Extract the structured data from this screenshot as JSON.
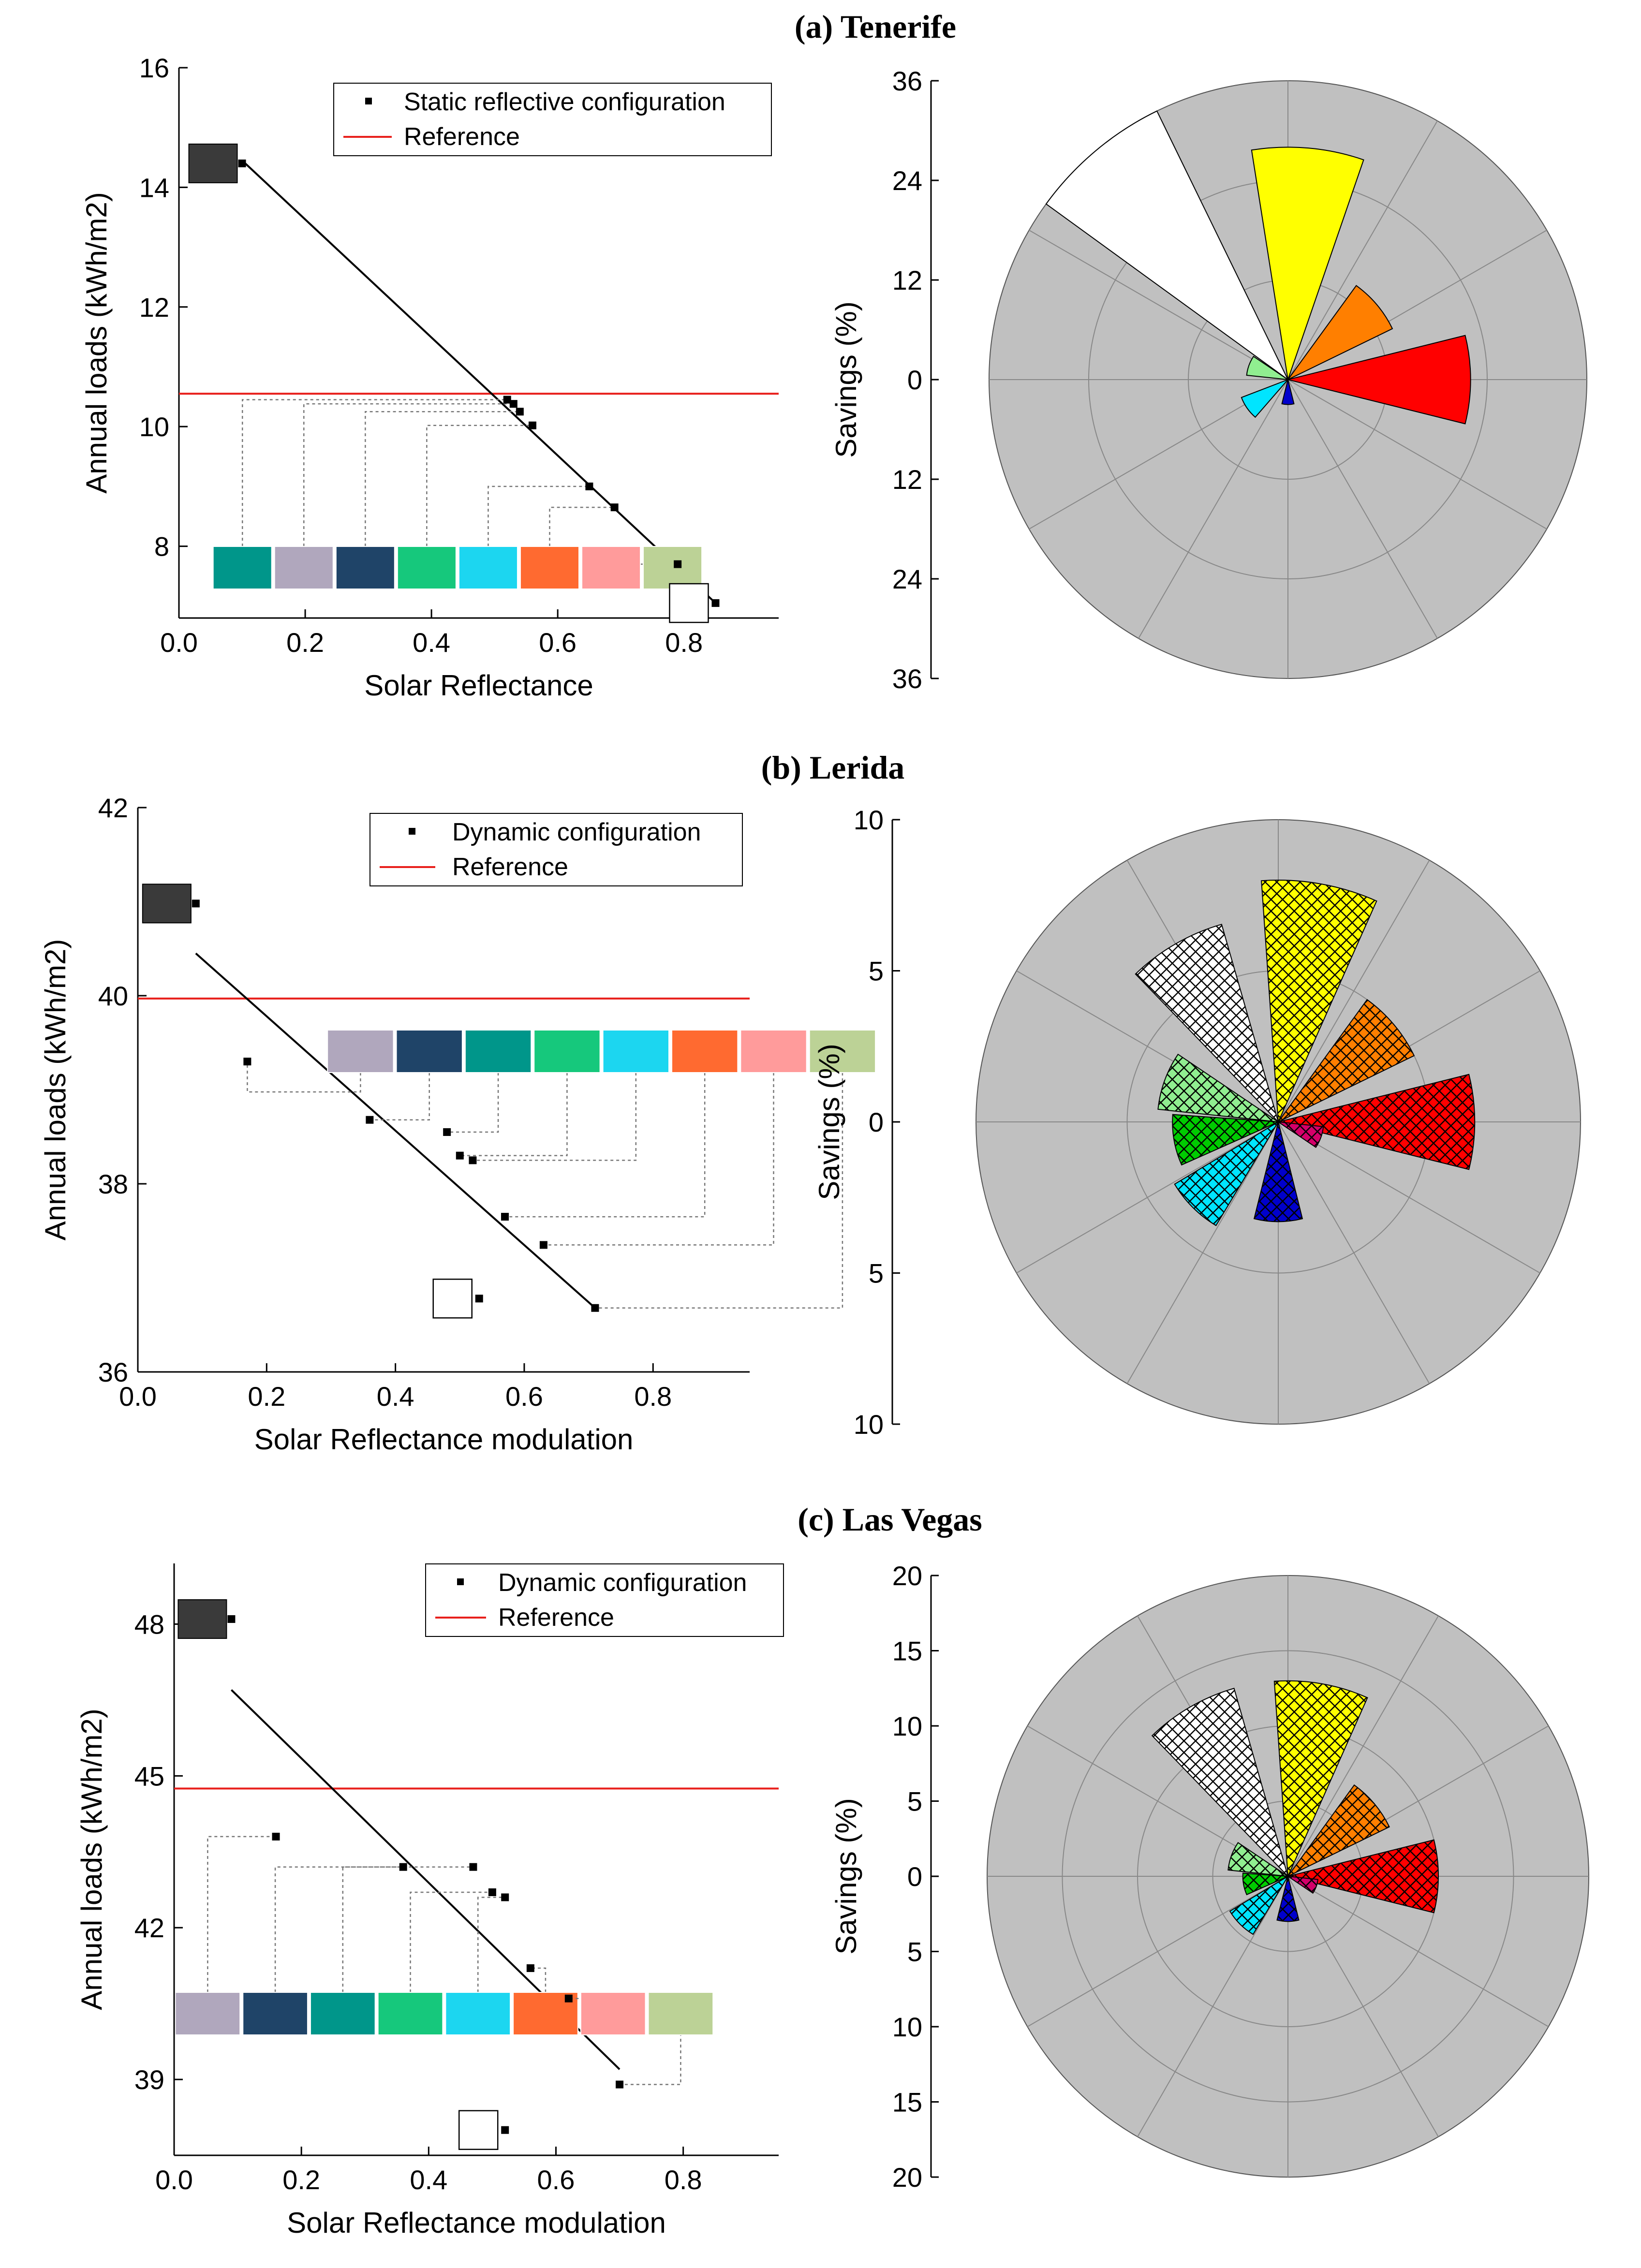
{
  "figure": {
    "panels": [
      {
        "title": "(a) Tenerife",
        "legend": [
          "Static reflective configuration",
          "Reference"
        ],
        "polar_ylabel": "Savings (%)"
      },
      {
        "title": "(b) Lerida",
        "legend": [
          "Dynamic configuration",
          "Reference"
        ],
        "polar_ylabel": "Savings (%)"
      },
      {
        "title": "(c) Las Vegas",
        "legend": [
          "Dynamic configuration",
          "Reference"
        ],
        "polar_ylabel": "Savings (%)"
      }
    ]
  },
  "colors": {
    "reference_line": "#e8201c",
    "polar_bg": "#c0c0c0",
    "swatch_teal": "#00968a",
    "swatch_lavender": "#b0a7bd",
    "swatch_navy": "#1f4468",
    "swatch_green": "#16c87c",
    "swatch_cyan": "#1cd6f0",
    "swatch_orange": "#ff6a30",
    "swatch_pink": "#ff9b9b",
    "swatch_sage": "#bcd296",
    "swatch_black": "#3a3a3a"
  },
  "chart_data": [
    {
      "type": "scatter",
      "title": "(a) Tenerife",
      "xlabel": "Solar Reflectance",
      "ylabel": "Annual loads (kWh/m2)",
      "xlim": [
        0,
        0.95
      ],
      "ylim": [
        6.8,
        16
      ],
      "xticks": [
        "0.0",
        "0.2",
        "0.4",
        "0.6",
        "0.8"
      ],
      "yticks": [
        "8",
        "10",
        "12",
        "14",
        "16"
      ],
      "x": [
        0.1,
        0.52,
        0.53,
        0.54,
        0.56,
        0.65,
        0.69,
        0.79,
        0.85
      ],
      "y": [
        14.4,
        10.45,
        10.38,
        10.25,
        10.02,
        9.0,
        8.65,
        7.7,
        7.05
      ],
      "fit_line": {
        "x": [
          0.1,
          0.85
        ],
        "y": [
          14.45,
          7.05
        ]
      },
      "reference": 10.55,
      "legend": [
        "Static reflective configuration",
        "Reference"
      ]
    },
    {
      "type": "polar-bar",
      "title": "(a) Tenerife",
      "ylabel": "Savings (%)",
      "rmax": 36,
      "yticks": [
        "36",
        "24",
        "12",
        "0",
        "12",
        "24",
        "36"
      ],
      "categories": [
        "red",
        "orange",
        "yellow",
        "white",
        "light-green",
        "cyan",
        "blue"
      ],
      "values": [
        22,
        14,
        28,
        36,
        5,
        6,
        3
      ],
      "hatched": false
    },
    {
      "type": "scatter",
      "title": "(b) Lerida",
      "xlabel": "Solar Reflectance modulation",
      "ylabel": "Annual loads (kWh/m2)",
      "xlim": [
        0,
        0.95
      ],
      "ylim": [
        36,
        42
      ],
      "xticks": [
        "0.0",
        "0.2",
        "0.4",
        "0.6",
        "0.8"
      ],
      "yticks": [
        "36",
        "38",
        "40",
        "42"
      ],
      "x": [
        0.09,
        0.17,
        0.36,
        0.48,
        0.5,
        0.52,
        0.57,
        0.63,
        0.71,
        0.53
      ],
      "y": [
        40.98,
        39.3,
        38.68,
        38.55,
        38.3,
        38.25,
        37.65,
        37.35,
        36.68,
        36.78
      ],
      "fit_line": {
        "x": [
          0.09,
          0.71
        ],
        "y": [
          40.45,
          36.68
        ]
      },
      "reference": 39.97,
      "legend": [
        "Dynamic configuration",
        "Reference"
      ]
    },
    {
      "type": "polar-bar",
      "title": "(b) Lerida",
      "ylabel": "Savings (%)",
      "rmax": 10,
      "yticks": [
        "10",
        "5",
        "0",
        "5",
        "10"
      ],
      "categories": [
        "red",
        "orange",
        "yellow",
        "white",
        "light-green",
        "green",
        "cyan",
        "blue",
        "magenta"
      ],
      "values": [
        6.5,
        5.0,
        8.0,
        6.8,
        4.0,
        3.5,
        4.0,
        3.3,
        1.5
      ],
      "hatched": true
    },
    {
      "type": "scatter",
      "title": "(c) Las Vegas",
      "xlabel": "Solar Reflectance modulation",
      "ylabel": "Annual loads (kWh/m2)",
      "xlim": [
        0,
        0.95
      ],
      "ylim": [
        37.5,
        49.2
      ],
      "xticks": [
        "0.0",
        "0.2",
        "0.4",
        "0.6",
        "0.8"
      ],
      "yticks": [
        "39",
        "42",
        "45",
        "48"
      ],
      "x": [
        0.09,
        0.16,
        0.36,
        0.47,
        0.5,
        0.52,
        0.56,
        0.62,
        0.7,
        0.52
      ],
      "y": [
        48.1,
        43.8,
        43.2,
        43.2,
        42.7,
        42.6,
        41.2,
        40.6,
        38.9,
        38.0
      ],
      "fit_line": {
        "x": [
          0.09,
          0.7
        ],
        "y": [
          46.7,
          39.2
        ]
      },
      "reference": 44.75,
      "legend": [
        "Dynamic configuration",
        "Reference"
      ]
    },
    {
      "type": "polar-bar",
      "title": "(c) Las Vegas",
      "ylabel": "Savings (%)",
      "rmax": 20,
      "yticks": [
        "20",
        "15",
        "10",
        "5",
        "0",
        "5",
        "10",
        "15",
        "20"
      ],
      "categories": [
        "red",
        "orange",
        "yellow",
        "white",
        "light-green",
        "green",
        "cyan",
        "blue",
        "magenta"
      ],
      "values": [
        10,
        7.5,
        13.0,
        13.0,
        4.0,
        3.0,
        4.5,
        3.0,
        2.0
      ],
      "hatched": true
    }
  ]
}
